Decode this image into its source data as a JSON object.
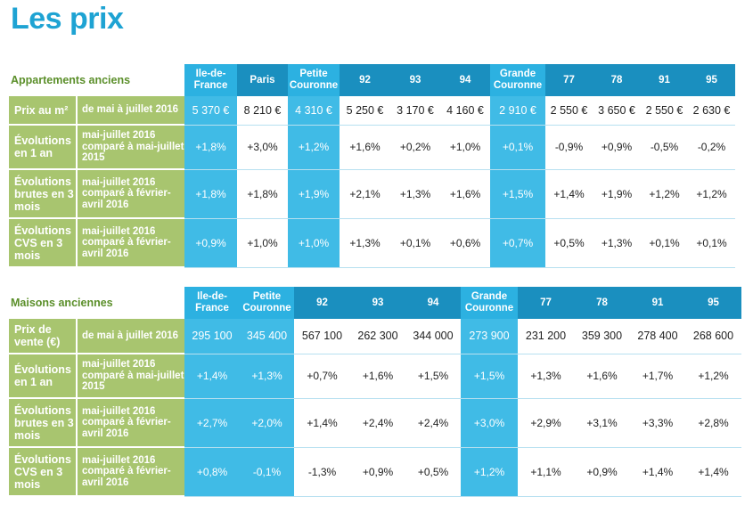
{
  "title": "Les prix",
  "apartments": {
    "section_label": "Appartements anciens",
    "columns": [
      {
        "label": "Ile-de-France",
        "hl": true
      },
      {
        "label": "Paris",
        "hl": false
      },
      {
        "label": "Petite Couronne",
        "hl": true
      },
      {
        "label": "92",
        "hl": false
      },
      {
        "label": "93",
        "hl": false
      },
      {
        "label": "94",
        "hl": false
      },
      {
        "label": "Grande Couronne",
        "hl": true
      },
      {
        "label": "77",
        "hl": false
      },
      {
        "label": "78",
        "hl": false
      },
      {
        "label": "91",
        "hl": false
      },
      {
        "label": "95",
        "hl": false
      }
    ],
    "rows": [
      {
        "label": "Prix au m²",
        "period": "de mai à juillet 2016",
        "values": [
          "5 370 €",
          "8 210 €",
          "4 310 €",
          "5 250 €",
          "3 170 €",
          "4 160 €",
          "2 910 €",
          "2 550 €",
          "3 650 €",
          "2 550 €",
          "2 630 €"
        ]
      },
      {
        "label": "Évolutions en 1 an",
        "period": "mai-juillet 2016 comparé à mai-juillet 2015",
        "values": [
          "+1,8%",
          "+3,0%",
          "+1,2%",
          "+1,6%",
          "+0,2%",
          "+1,0%",
          "+0,1%",
          "-0,9%",
          "+0,9%",
          "-0,5%",
          "-0,2%"
        ]
      },
      {
        "label": "Évolutions brutes en 3 mois",
        "period": "mai-juillet 2016 comparé à février-avril 2016",
        "values": [
          "+1,8%",
          "+1,8%",
          "+1,9%",
          "+2,1%",
          "+1,3%",
          "+1,6%",
          "+1,5%",
          "+1,4%",
          "+1,9%",
          "+1,2%",
          "+1,2%"
        ]
      },
      {
        "label": "Évolutions CVS en 3 mois",
        "period": "mai-juillet 2016 comparé à février-avril 2016",
        "values": [
          "+0,9%",
          "+1,0%",
          "+1,0%",
          "+1,3%",
          "+0,1%",
          "+0,6%",
          "+0,7%",
          "+0,5%",
          "+1,3%",
          "+0,1%",
          "+0,1%"
        ]
      }
    ]
  },
  "houses": {
    "section_label": "Maisons anciennes",
    "columns": [
      {
        "label": "Ile-de-France",
        "hl": true
      },
      {
        "label": "Petite Couronne",
        "hl": true
      },
      {
        "label": "92",
        "hl": false
      },
      {
        "label": "93",
        "hl": false
      },
      {
        "label": "94",
        "hl": false
      },
      {
        "label": "Grande Couronne",
        "hl": true
      },
      {
        "label": "77",
        "hl": false
      },
      {
        "label": "78",
        "hl": false
      },
      {
        "label": "91",
        "hl": false
      },
      {
        "label": "95",
        "hl": false
      }
    ],
    "rows": [
      {
        "label": "Prix de vente (€)",
        "period": "de mai à juillet 2016",
        "values": [
          "295 100",
          "345 400",
          "567 100",
          "262 300",
          "344 000",
          "273 900",
          "231 200",
          "359 300",
          "278 400",
          "268 600"
        ]
      },
      {
        "label": "Évolutions en 1 an",
        "period": "mai-juillet 2016 comparé à mai-juillet 2015",
        "values": [
          "+1,4%",
          "+1,3%",
          "+0,7%",
          "+1,6%",
          "+1,5%",
          "+1,5%",
          "+1,3%",
          "+1,6%",
          "+1,7%",
          "+1,2%"
        ]
      },
      {
        "label": "Évolutions brutes en 3 mois",
        "period": "mai-juillet 2016 comparé à février-avril 2016",
        "values": [
          "+2,7%",
          "+2,0%",
          "+1,4%",
          "+2,4%",
          "+2,4%",
          "+3,0%",
          "+2,9%",
          "+3,1%",
          "+3,3%",
          "+2,8%"
        ]
      },
      {
        "label": "Évolutions CVS en 3 mois",
        "period": "mai-juillet 2016 comparé à février-avril 2016",
        "values": [
          "+0,8%",
          "-0,1%",
          "-1,3%",
          "+0,9%",
          "+0,5%",
          "+1,2%",
          "+1,1%",
          "+0,9%",
          "+1,4%",
          "+1,4%"
        ]
      }
    ]
  },
  "colors": {
    "title": "#1ea3d3",
    "header_light": "#2cb1e1",
    "header_dark": "#1a8fbf",
    "highlight": "#40bbe6",
    "label_green": "#a8c56f",
    "section_green": "#5b8f2a"
  }
}
